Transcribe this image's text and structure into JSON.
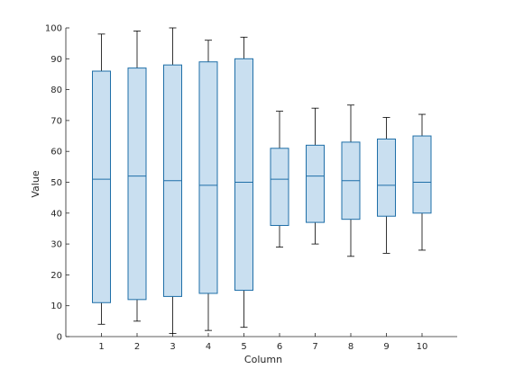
{
  "chart_data": {
    "type": "box",
    "xlabel": "Column",
    "ylabel": "Value",
    "ylim": [
      0,
      100
    ],
    "yticks": [
      0,
      10,
      20,
      30,
      40,
      50,
      60,
      70,
      80,
      90,
      100
    ],
    "categories": [
      "1",
      "2",
      "3",
      "4",
      "5",
      "6",
      "7",
      "8",
      "9",
      "10"
    ],
    "boxes": [
      {
        "min": 4,
        "q1": 11,
        "median": 51,
        "q3": 86,
        "max": 98
      },
      {
        "min": 5,
        "q1": 12,
        "median": 52,
        "q3": 87,
        "max": 99
      },
      {
        "min": 1,
        "q1": 13,
        "median": 50.5,
        "q3": 88,
        "max": 100
      },
      {
        "min": 2,
        "q1": 14,
        "median": 49,
        "q3": 89,
        "max": 96
      },
      {
        "min": 3,
        "q1": 15,
        "median": 50,
        "q3": 90,
        "max": 97
      },
      {
        "min": 29,
        "q1": 36,
        "median": 51,
        "q3": 61,
        "max": 73
      },
      {
        "min": 30,
        "q1": 37,
        "median": 52,
        "q3": 62,
        "max": 74
      },
      {
        "min": 26,
        "q1": 38,
        "median": 50.5,
        "q3": 63,
        "max": 75
      },
      {
        "min": 27,
        "q1": 39,
        "median": 49,
        "q3": 64,
        "max": 71
      },
      {
        "min": 28,
        "q1": 40,
        "median": 50,
        "q3": 65,
        "max": 72
      }
    ],
    "colors": {
      "box_fill": "#c9dff0",
      "box_edge": "#1f6fa8",
      "whisker": "#000000"
    },
    "grid": false
  }
}
